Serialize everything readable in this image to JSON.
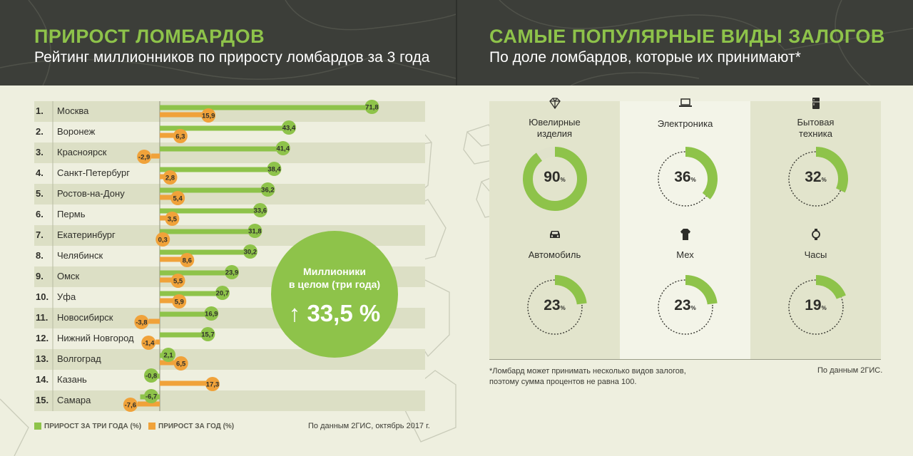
{
  "left": {
    "title": "ПРИРОСТ ЛОМБАРДОВ",
    "subtitle": "Рейтинг миллионников по приросту ломбардов за 3 года",
    "bubble": {
      "line1": "Миллионики",
      "line2": "в целом (три года)",
      "arrow": "↑",
      "value": "33,5 %"
    },
    "legend": [
      {
        "label": "ПРИРОСТ ЗА ТРИ ГОДА (%)",
        "color": "#8ec34a"
      },
      {
        "label": "ПРИРОСТ ЗА ГОД (%)",
        "color": "#f0a23a"
      }
    ],
    "source": "По данным 2ГИС, октябрь 2017 г."
  },
  "chart_data": {
    "type": "bar",
    "categories": [
      "Москва",
      "Воронеж",
      "Красноярск",
      "Санкт-Петербург",
      "Ростов-на-Дону",
      "Пермь",
      "Екатеринбург",
      "Челябинск",
      "Омск",
      "Уфа",
      "Новосибирск",
      "Нижний Новгород",
      "Волгоград",
      "Казань",
      "Самара"
    ],
    "ranks": [
      "1.",
      "2.",
      "3.",
      "4.",
      "5.",
      "6.",
      "7.",
      "8.",
      "9.",
      "10.",
      "11.",
      "12.",
      "13.",
      "14.",
      "15."
    ],
    "series": [
      {
        "name": "ПРИРОСТ ЗА ТРИ ГОДА (%)",
        "color": "#8ec34a",
        "values": [
          71.8,
          43.4,
          41.4,
          38.4,
          36.2,
          33.6,
          31.8,
          30.2,
          23.9,
          20.7,
          16.9,
          15.7,
          2.1,
          -0.8,
          -6.7
        ]
      },
      {
        "name": "ПРИРОСТ ЗА ГОД (%)",
        "color": "#f0a23a",
        "values": [
          15.9,
          6.3,
          -2.9,
          2.8,
          5.4,
          3.5,
          0.3,
          8.6,
          5.5,
          5.9,
          -3.8,
          -1.4,
          6.5,
          17.3,
          -7.6
        ]
      }
    ],
    "labels3y": [
      "71,8",
      "43,4",
      "41,4",
      "38,4",
      "36,2",
      "33,6",
      "31,8",
      "30,2",
      "23,9",
      "20,7",
      "16,9",
      "15,7",
      "2,1",
      "-0,8",
      "-6,7"
    ],
    "labels1y": [
      "15,9",
      "6,3",
      "-2,9",
      "2,8",
      "5,4",
      "3,5",
      "0,3",
      "8,6",
      "5,5",
      "5,9",
      "-3,8",
      "-1,4",
      "6,5",
      "17,3",
      "-7,6"
    ]
  },
  "right": {
    "title": "САМЫЕ ПОПУЛЯРНЫЕ ВИДЫ ЗАЛОГОВ",
    "subtitle": "По доле ломбардов, которые их принимают*",
    "items": [
      {
        "line1": "Ювелирные",
        "line2": "изделия",
        "value": 90,
        "label": "90",
        "icon": "diamond-icon"
      },
      {
        "line1": "Электроника",
        "line2": "",
        "value": 36,
        "label": "36",
        "icon": "laptop-icon"
      },
      {
        "line1": "Бытовая",
        "line2": "техника",
        "value": 32,
        "label": "32",
        "icon": "fridge-icon"
      },
      {
        "line1": "Автомобиль",
        "line2": "",
        "value": 23,
        "label": "23",
        "icon": "car-icon"
      },
      {
        "line1": "Мех",
        "line2": "",
        "value": 23,
        "label": "23",
        "icon": "fur-coat-icon"
      },
      {
        "line1": "Часы",
        "line2": "",
        "value": 19,
        "label": "19",
        "icon": "watch-icon"
      }
    ],
    "pct_sign": "%",
    "footnote1": "*Ломбард может принимать несколько видов залогов,",
    "footnote2": "поэтому сумма процентов не равна 100.",
    "source": "По данным 2ГИС."
  }
}
